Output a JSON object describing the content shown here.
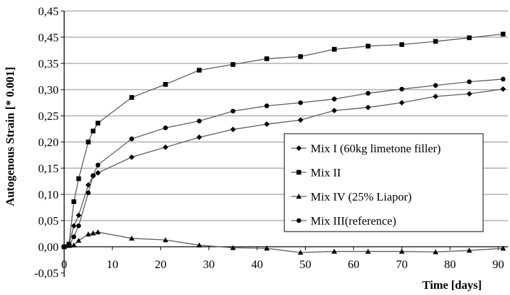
{
  "chart_data": {
    "type": "line",
    "title": "",
    "xlabel": "Time [days]",
    "ylabel": "Autogenous Strain [* 0.001]",
    "xlim": [
      0,
      92
    ],
    "ylim": [
      -0.05,
      0.45
    ],
    "x_ticks": [
      "0",
      "10",
      "20",
      "30",
      "40",
      "50",
      "60",
      "70",
      "80",
      "90"
    ],
    "y_ticks": [
      "-0,05",
      "0,00",
      "0,05",
      "0,10",
      "0,15",
      "0,20",
      "0,25",
      "0,30",
      "0,35",
      "0,45",
      "0,45"
    ],
    "grid": "horizontal",
    "legend_position": "right",
    "series": [
      {
        "name": "Mix I (60kg limetone filler)",
        "marker": "diamond",
        "x": [
          0,
          1,
          2,
          3,
          5,
          6,
          7,
          14,
          21,
          28,
          35,
          42,
          49,
          56,
          63,
          70,
          77,
          84,
          91
        ],
        "y": [
          0.0,
          0.005,
          0.04,
          0.06,
          0.118,
          0.135,
          0.141,
          0.171,
          0.19,
          0.209,
          0.224,
          0.234,
          0.242,
          0.26,
          0.266,
          0.275,
          0.287,
          0.292,
          0.301
        ]
      },
      {
        "name": "Mix II",
        "marker": "square",
        "x": [
          0,
          1,
          2,
          3,
          5,
          6,
          7,
          14,
          21,
          28,
          35,
          42,
          49,
          56,
          63,
          70,
          77,
          84,
          91
        ],
        "y": [
          0.0,
          0.005,
          0.086,
          0.13,
          0.2,
          0.221,
          0.236,
          0.285,
          0.31,
          0.337,
          0.348,
          0.359,
          0.363,
          0.377,
          0.383,
          0.386,
          0.392,
          0.399,
          0.406
        ]
      },
      {
        "name": "Mix IV (25% Liapor)",
        "marker": "triangle",
        "x": [
          0,
          1,
          2,
          3,
          5,
          6,
          7,
          14,
          21,
          28,
          35,
          42,
          49,
          56,
          63,
          70,
          77,
          84,
          91
        ],
        "y": [
          0.0,
          0.002,
          0.003,
          0.012,
          0.024,
          0.026,
          0.028,
          0.016,
          0.013,
          0.003,
          -0.002,
          -0.003,
          -0.011,
          -0.009,
          -0.009,
          -0.009,
          -0.01,
          -0.007,
          -0.003
        ]
      },
      {
        "name": "Mix III(reference)",
        "marker": "circle",
        "x": [
          0,
          1,
          2,
          3,
          5,
          6,
          7,
          14,
          21,
          28,
          35,
          42,
          49,
          56,
          63,
          70,
          77,
          84,
          91
        ],
        "y": [
          0.0,
          0.003,
          0.019,
          0.04,
          0.103,
          0.136,
          0.156,
          0.206,
          0.227,
          0.24,
          0.259,
          0.269,
          0.275,
          0.282,
          0.293,
          0.301,
          0.308,
          0.315,
          0.32
        ]
      }
    ]
  }
}
